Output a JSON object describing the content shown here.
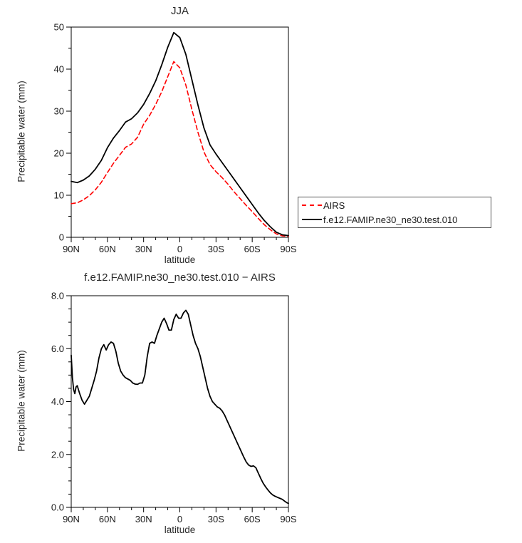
{
  "page": {
    "background": "#ffffff"
  },
  "colors": {
    "airs_red": "#ff0000",
    "model_black": "#000000",
    "axis": "#000000"
  },
  "legend": {
    "entries": [
      {
        "label": "AIRS",
        "color": "#ff0000",
        "style": "dashed"
      },
      {
        "label": "f.e12.FAMIP.ne30_ne30.test.010",
        "color": "#000000",
        "style": "solid"
      }
    ]
  },
  "chart_data": [
    {
      "type": "line",
      "title": "JJA",
      "xlabel": "latitude",
      "ylabel": "Precipitable water (mm)",
      "xlim": [
        90,
        -90
      ],
      "ylim": [
        0,
        50
      ],
      "grid": false,
      "legend_position": "outside-right",
      "xticks": {
        "values": [
          90,
          60,
          30,
          0,
          -30,
          -60,
          -90
        ],
        "labels": [
          "90N",
          "60N",
          "30N",
          "0",
          "30S",
          "60S",
          "90S"
        ],
        "minor_step": 10
      },
      "yticks": {
        "values": [
          0,
          10,
          20,
          30,
          40,
          50
        ],
        "labels": [
          "0",
          "10",
          "20",
          "30",
          "40",
          "50"
        ],
        "minor_step": 5
      },
      "series": [
        {
          "name": "AIRS",
          "color": "#ff0000",
          "style": "dashed",
          "x": [
            90,
            85,
            80,
            75,
            70,
            65,
            60,
            55,
            50,
            45,
            40,
            35,
            30,
            25,
            20,
            15,
            10,
            5,
            0,
            -5,
            -10,
            -15,
            -20,
            -25,
            -30,
            -35,
            -40,
            -45,
            -50,
            -55,
            -60,
            -65,
            -70,
            -75,
            -80,
            -85,
            -90
          ],
          "y": [
            8.0,
            8.2,
            8.9,
            9.9,
            11.3,
            13.1,
            15.4,
            17.6,
            19.5,
            21.4,
            22.2,
            23.8,
            26.9,
            29.0,
            31.6,
            34.6,
            38.2,
            41.8,
            40.3,
            36.2,
            30.4,
            25.0,
            20.3,
            17.3,
            15.6,
            14.2,
            12.6,
            10.8,
            9.2,
            7.6,
            6.1,
            4.5,
            3.0,
            1.8,
            0.8,
            0.35,
            0.25
          ]
        },
        {
          "name": "f.e12.FAMIP.ne30_ne30.test.010",
          "color": "#000000",
          "style": "solid",
          "x": [
            90,
            85,
            80,
            75,
            70,
            65,
            60,
            55,
            50,
            45,
            40,
            35,
            30,
            25,
            20,
            15,
            10,
            5,
            0,
            -5,
            -10,
            -15,
            -20,
            -25,
            -30,
            -35,
            -40,
            -45,
            -50,
            -55,
            -60,
            -65,
            -70,
            -75,
            -80,
            -85,
            -90
          ],
          "y": [
            13.3,
            13.0,
            13.6,
            14.6,
            16.2,
            18.3,
            21.3,
            23.6,
            25.4,
            27.4,
            28.2,
            29.6,
            31.6,
            34.2,
            37.2,
            41.0,
            45.2,
            48.7,
            47.5,
            43.5,
            37.5,
            31.5,
            26.0,
            22.0,
            19.8,
            17.8,
            15.8,
            13.8,
            11.8,
            9.8,
            7.8,
            5.8,
            4.0,
            2.5,
            1.2,
            0.6,
            0.4
          ]
        }
      ]
    },
    {
      "type": "line",
      "title": "f.e12.FAMIP.ne30_ne30.test.010 − AIRS",
      "xlabel": "latitude",
      "ylabel": "Precipitable water (mm)",
      "xlim": [
        90,
        -90
      ],
      "ylim": [
        0,
        8
      ],
      "grid": false,
      "xticks": {
        "values": [
          90,
          60,
          30,
          0,
          -30,
          -60,
          -90
        ],
        "labels": [
          "90N",
          "60N",
          "30N",
          "0",
          "30S",
          "60S",
          "90S"
        ],
        "minor_step": 10
      },
      "yticks": {
        "values": [
          0,
          2,
          4,
          6,
          8
        ],
        "labels": [
          "0.0",
          "2.0",
          "4.0",
          "6.0",
          "8.0"
        ],
        "minor_step": 0.5
      },
      "series": [
        {
          "name": "difference",
          "color": "#000000",
          "style": "solid",
          "x": [
            90,
            89,
            88,
            87,
            86,
            85,
            83,
            81,
            79,
            77,
            75,
            73,
            71,
            69,
            67,
            65,
            63,
            61,
            59,
            57,
            55,
            53,
            51,
            49,
            47,
            45,
            43,
            41,
            39,
            37,
            35,
            33,
            31,
            29,
            27,
            25,
            23,
            21,
            19,
            17,
            15,
            13,
            11,
            9,
            7,
            5,
            3,
            1,
            -1,
            -3,
            -5,
            -7,
            -9,
            -11,
            -13,
            -15,
            -17,
            -19,
            -21,
            -23,
            -25,
            -27,
            -29,
            -31,
            -33,
            -35,
            -37,
            -39,
            -41,
            -43,
            -45,
            -47,
            -49,
            -51,
            -53,
            -55,
            -57,
            -59,
            -61,
            -63,
            -65,
            -67,
            -69,
            -71,
            -73,
            -75,
            -77,
            -79,
            -81,
            -83,
            -85,
            -87,
            -89,
            -90
          ],
          "y": [
            5.75,
            4.9,
            4.45,
            4.3,
            4.55,
            4.6,
            4.3,
            4.05,
            3.9,
            4.05,
            4.2,
            4.5,
            4.8,
            5.15,
            5.65,
            6.0,
            6.15,
            5.95,
            6.15,
            6.25,
            6.2,
            5.9,
            5.45,
            5.15,
            5.0,
            4.9,
            4.85,
            4.8,
            4.7,
            4.66,
            4.65,
            4.7,
            4.7,
            5.0,
            5.7,
            6.2,
            6.25,
            6.2,
            6.5,
            6.75,
            7.0,
            7.15,
            6.95,
            6.7,
            6.7,
            7.1,
            7.3,
            7.15,
            7.15,
            7.35,
            7.45,
            7.3,
            6.9,
            6.5,
            6.2,
            6.0,
            5.7,
            5.3,
            4.9,
            4.5,
            4.2,
            4.0,
            3.9,
            3.8,
            3.75,
            3.65,
            3.5,
            3.3,
            3.1,
            2.9,
            2.7,
            2.5,
            2.3,
            2.1,
            1.9,
            1.72,
            1.6,
            1.55,
            1.57,
            1.5,
            1.3,
            1.1,
            0.92,
            0.78,
            0.66,
            0.55,
            0.47,
            0.42,
            0.38,
            0.34,
            0.3,
            0.23,
            0.17,
            0.15
          ]
        }
      ]
    }
  ]
}
